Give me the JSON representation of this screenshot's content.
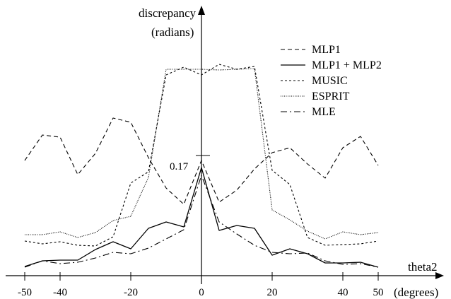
{
  "chart_data": {
    "type": "line",
    "xlabel": "theta2",
    "xunit": "(degrees)",
    "ylabel_line1": "discrepancy",
    "ylabel_line2": "(radians)",
    "xlim": [
      -55,
      52
    ],
    "ylim": [
      0,
      0.29
    ],
    "xticks": [
      -50,
      -40,
      -20,
      0,
      20,
      40,
      50
    ],
    "ytick_label": "0.17",
    "ytick_value": 0.17,
    "legend_position": "top-right",
    "series": [
      {
        "name": "MLP1",
        "dash": "6,4",
        "width": 1.1,
        "x": [
          -50,
          -45,
          -40,
          -35,
          -30,
          -25,
          -20,
          -15,
          -10,
          -5,
          0,
          5,
          10,
          15,
          20,
          25,
          30,
          35,
          40,
          45,
          50
        ],
        "y": [
          0.163,
          0.199,
          0.196,
          0.143,
          0.173,
          0.223,
          0.217,
          0.167,
          0.124,
          0.101,
          0.163,
          0.104,
          0.121,
          0.151,
          0.174,
          0.181,
          0.158,
          0.138,
          0.181,
          0.197,
          0.156
        ]
      },
      {
        "name": "MLP1 + MLP2",
        "dash": "",
        "width": 1.3,
        "x": [
          -50,
          -45,
          -40,
          -35,
          -30,
          -25,
          -20,
          -15,
          -10,
          -5,
          0,
          5,
          10,
          15,
          20,
          25,
          30,
          35,
          40,
          45,
          50
        ],
        "y": [
          0.013,
          0.021,
          0.022,
          0.022,
          0.037,
          0.048,
          0.038,
          0.067,
          0.076,
          0.069,
          0.153,
          0.064,
          0.071,
          0.067,
          0.029,
          0.038,
          0.031,
          0.018,
          0.018,
          0.019,
          0.012
        ]
      },
      {
        "name": "MUSIC",
        "dash": "3,3",
        "width": 1.1,
        "x": [
          -50,
          -45,
          -40,
          -35,
          -30,
          -25,
          -20,
          -15,
          -10,
          -5,
          0,
          5,
          10,
          15,
          20,
          25,
          30,
          35,
          40,
          45,
          50
        ],
        "y": [
          0.049,
          0.045,
          0.048,
          0.043,
          0.042,
          0.055,
          0.131,
          0.147,
          0.284,
          0.295,
          0.284,
          0.299,
          0.292,
          0.296,
          0.149,
          0.129,
          0.054,
          0.043,
          0.044,
          0.045,
          0.049
        ],
        "clip": true
      },
      {
        "name": "ESPRIT",
        "dash": "1,1.5",
        "width": 1.1,
        "x": [
          -50,
          -45,
          -40,
          -35,
          -30,
          -25,
          -20,
          -15,
          -10,
          -5,
          0,
          5,
          10,
          15,
          20,
          25,
          30,
          35,
          40,
          45,
          50
        ],
        "y": [
          0.058,
          0.058,
          0.062,
          0.054,
          0.061,
          0.078,
          0.084,
          0.139,
          0.292,
          0.292,
          0.292,
          0.291,
          0.292,
          0.293,
          0.093,
          0.079,
          0.063,
          0.052,
          0.062,
          0.058,
          0.061
        ],
        "clip": true
      },
      {
        "name": "MLE",
        "dash": "9,4,2,4",
        "width": 1.1,
        "x": [
          -50,
          -45,
          -40,
          -35,
          -30,
          -25,
          -20,
          -15,
          -10,
          -5,
          0,
          5,
          10,
          15,
          20,
          25,
          30,
          35,
          40,
          45,
          50
        ],
        "y": [
          0.012,
          0.021,
          0.017,
          0.019,
          0.025,
          0.033,
          0.031,
          0.039,
          0.052,
          0.065,
          0.142,
          0.076,
          0.059,
          0.043,
          0.033,
          0.031,
          0.032,
          0.021,
          0.016,
          0.017,
          0.012
        ]
      }
    ]
  }
}
